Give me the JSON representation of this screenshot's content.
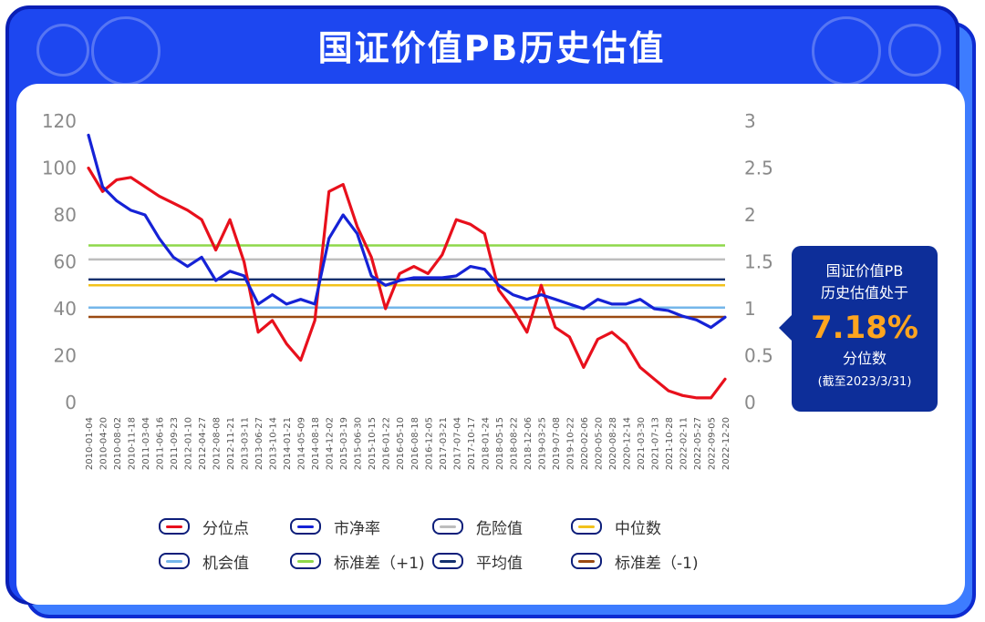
{
  "title": "国证价值PB历史估值",
  "callout": {
    "line1": "国证价值PB",
    "line2": "历史估值处于",
    "value": "7.18%",
    "line3": "分位数",
    "note": "(截至2023/3/31)"
  },
  "legend": [
    {
      "label": "分位点",
      "color": "#e8101c"
    },
    {
      "label": "市净率",
      "color": "#1522d6"
    },
    {
      "label": "危险值",
      "color": "#bdbdbd"
    },
    {
      "label": "中位数",
      "color": "#f2c21b"
    },
    {
      "label": "机会值",
      "color": "#74b6ea"
    },
    {
      "label": "标准差（+1)",
      "color": "#8ed84a"
    },
    {
      "label": "平均值",
      "color": "#14306e"
    },
    {
      "label": "标准差（-1)",
      "color": "#9a4a12"
    }
  ],
  "chart_data": {
    "type": "line",
    "title": "国证价值PB历史估值",
    "y_left": {
      "ticks": [
        "120",
        "100",
        "80",
        "60",
        "40",
        "20",
        "0"
      ],
      "min": 0,
      "max": 120
    },
    "y_right": {
      "ticks": [
        "3",
        "2.5",
        "2",
        "1.5",
        "1",
        "0.5",
        "0"
      ],
      "min": 0,
      "max": 3
    },
    "x_ticks": [
      "2010-01-04",
      "2010-04-20",
      "2010-08-02",
      "2010-11-18",
      "2011-03-04",
      "2011-06-16",
      "2011-09-23",
      "2012-01-10",
      "2012-04-27",
      "2012-08-08",
      "2012-11-21",
      "2013-03-11",
      "2013-06-27",
      "2013-10-14",
      "2014-01-21",
      "2014-05-09",
      "2014-08-18",
      "2014-12-02",
      "2015-03-19",
      "2015-06-30",
      "2015-10-15",
      "2016-01-22",
      "2016-05-10",
      "2016-08-18",
      "2016-12-05",
      "2017-03-21",
      "2017-07-04",
      "2017-10-17",
      "2018-01-24",
      "2018-05-15",
      "2018-08-22",
      "2018-12-06",
      "2019-03-25",
      "2019-07-08",
      "2019-10-22",
      "2020-02-06",
      "2020-05-20",
      "2020-08-28",
      "2020-12-14",
      "2021-03-30",
      "2021-07-13",
      "2021-10-28",
      "2022-02-11",
      "2022-05-27",
      "2022-09-05",
      "2022-12-20"
    ],
    "series": [
      {
        "name": "分位点",
        "axis": "left",
        "color": "#e8101c",
        "values": [
          100,
          90,
          95,
          96,
          92,
          88,
          85,
          82,
          78,
          65,
          78,
          60,
          30,
          35,
          25,
          18,
          35,
          90,
          93,
          75,
          62,
          40,
          55,
          58,
          55,
          63,
          78,
          76,
          72,
          48,
          40,
          30,
          50,
          32,
          28,
          15,
          27,
          30,
          25,
          15,
          10,
          5,
          3,
          2,
          2,
          10
        ]
      },
      {
        "name": "市净率",
        "axis": "right",
        "color": "#1522d6",
        "values": [
          2.85,
          2.3,
          2.15,
          2.05,
          2.0,
          1.75,
          1.55,
          1.45,
          1.55,
          1.3,
          1.4,
          1.35,
          1.05,
          1.15,
          1.05,
          1.1,
          1.05,
          1.75,
          2.0,
          1.8,
          1.35,
          1.25,
          1.3,
          1.33,
          1.33,
          1.33,
          1.35,
          1.45,
          1.42,
          1.25,
          1.15,
          1.1,
          1.15,
          1.1,
          1.05,
          1.0,
          1.1,
          1.05,
          1.05,
          1.1,
          1.0,
          0.98,
          0.92,
          0.88,
          0.8,
          0.91
        ]
      }
    ],
    "reference_lines": [
      {
        "name": "标准差（+1)",
        "axis": "left",
        "value": 67,
        "color": "#8ed84a"
      },
      {
        "name": "危险值",
        "axis": "left",
        "value": 61,
        "color": "#bdbdbd"
      },
      {
        "name": "平均值",
        "axis": "left",
        "value": 52.5,
        "color": "#14306e"
      },
      {
        "name": "中位数",
        "axis": "left",
        "value": 50,
        "color": "#f2c21b"
      },
      {
        "name": "机会值",
        "axis": "left",
        "value": 40.5,
        "color": "#74b6ea"
      },
      {
        "name": "标准差（-1)",
        "axis": "left",
        "value": 36.5,
        "color": "#9a4a12"
      }
    ],
    "grid": false,
    "legend_position": "bottom"
  }
}
